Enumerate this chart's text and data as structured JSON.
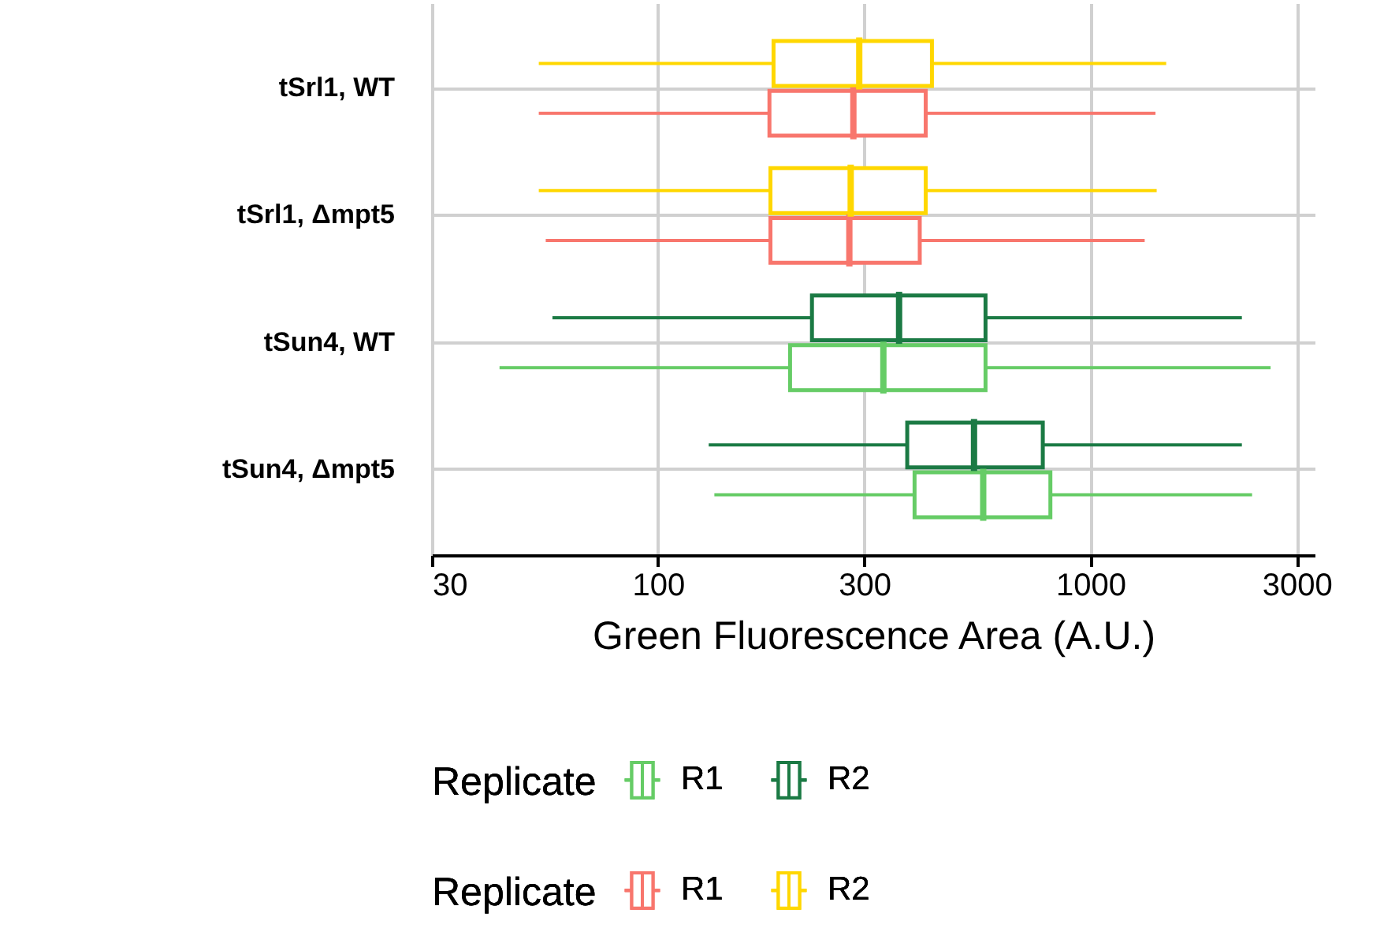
{
  "chart_data": {
    "type": "box",
    "orientation": "horizontal",
    "log": "x",
    "grid": true,
    "legend": "bottom",
    "legend_title": "Replicate",
    "xlabel": "Green Fluorescence Area (A.U.)",
    "xlim": [
      30,
      3300
    ],
    "xticks": [
      30,
      100,
      300,
      1000,
      3000
    ],
    "categories": [
      "tSrl1, WT",
      "tSrl1, Δmpt5",
      "tSun4, WT",
      "tSun4, Δmpt5"
    ],
    "series": [
      {
        "name": "R1",
        "color": "#f8766d",
        "boxes": [
          {
            "low": 53,
            "q1": 181,
            "median": 283,
            "q3": 416,
            "high": 1414
          },
          {
            "low": 55,
            "q1": 182,
            "median": 277,
            "q3": 403,
            "high": 1335
          },
          null,
          null
        ]
      },
      {
        "name": "R2",
        "color": "#ffd700",
        "boxes": [
          {
            "low": 53,
            "q1": 185,
            "median": 292,
            "q3": 430,
            "high": 1497
          },
          {
            "low": 53,
            "q1": 182,
            "median": 279,
            "q3": 416,
            "high": 1423
          },
          null,
          null
        ]
      },
      {
        "name": "R1",
        "color": "#66cc66",
        "boxes": [
          null,
          null,
          {
            "low": 43,
            "q1": 202,
            "median": 332,
            "q3": 572,
            "high": 2610
          },
          {
            "low": 135,
            "q1": 392,
            "median": 565,
            "q3": 808,
            "high": 2365
          }
        ]
      },
      {
        "name": "R2",
        "color": "#1b7a44",
        "boxes": [
          null,
          null,
          {
            "low": 57,
            "q1": 227,
            "median": 361,
            "q3": 572,
            "high": 2240
          },
          {
            "low": 131,
            "q1": 377,
            "median": 538,
            "q3": 776,
            "high": 2240
          }
        ]
      }
    ]
  }
}
